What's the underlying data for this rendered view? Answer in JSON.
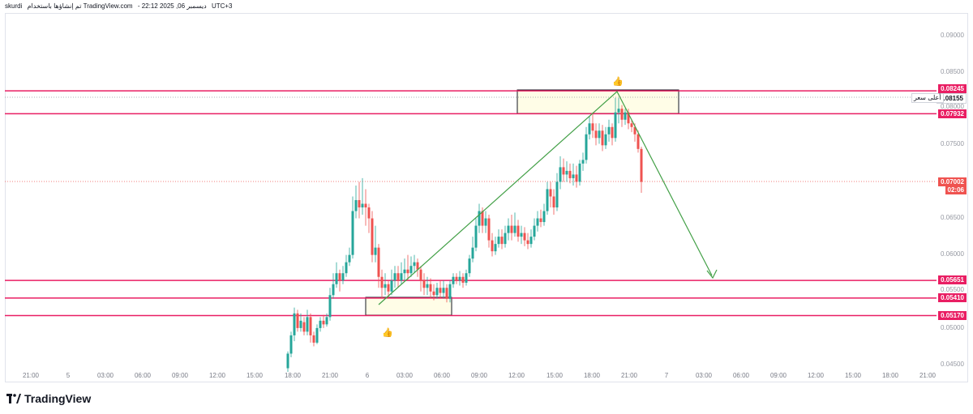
{
  "header": {
    "user": "skurdi",
    "publish_text": "تم إنشاؤها باستخدام TradingView.com",
    "date_text": "- 22:12 2025 ,06 ديسمبر",
    "timezone": "UTC+3"
  },
  "price_axis": {
    "ticks": [
      "0.09000",
      "0.08500",
      "0.08000",
      "0.07500",
      "0.06500",
      "0.06000",
      "0.05500",
      "0.05000",
      "0.04500"
    ],
    "level_tags": [
      {
        "label": "0.08245",
        "color": "#e91e63"
      },
      {
        "label": "0.08155",
        "color": "#ffffff"
      },
      {
        "label": "0.07932",
        "color": "#e91e63"
      },
      {
        "label": "0.07002",
        "color": "#ef5350"
      },
      {
        "label": "0.05651",
        "color": "#e91e63"
      },
      {
        "label": "0.05410",
        "color": "#e91e63"
      },
      {
        "label": "0.05170",
        "color": "#e91e63"
      }
    ],
    "countdown": "02:06",
    "high_label": "أعلى سعر"
  },
  "time_axis": [
    "21:00",
    "5",
    "03:00",
    "06:00",
    "09:00",
    "12:00",
    "15:00",
    "18:00",
    "21:00",
    "6",
    "03:00",
    "06:00",
    "09:00",
    "12:00",
    "15:00",
    "18:00",
    "21:00",
    "7",
    "03:00",
    "06:00",
    "09:00",
    "12:00",
    "15:00",
    "18:00",
    "21:00"
  ],
  "annotations": {
    "thumb_up_icon": "👍"
  },
  "brand": {
    "name": "TradingView"
  },
  "colors": {
    "up": "#26a69a",
    "down": "#ef5350",
    "level": "#e91e63",
    "trend": "#43a047"
  }
}
